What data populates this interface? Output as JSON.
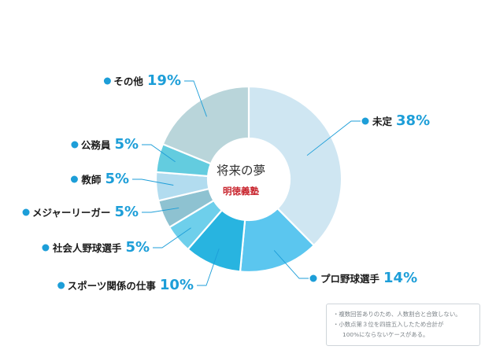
{
  "chart_data": {
    "type": "pie",
    "style": "donut",
    "center_title": "将来の夢",
    "center_subtitle": "明徳義塾",
    "slices": [
      {
        "label": "未定",
        "value": 38,
        "value_text": "38%",
        "color": "#cfe6f2"
      },
      {
        "label": "プロ野球選手",
        "value": 14,
        "value_text": "14%",
        "color": "#5bc6ef"
      },
      {
        "label": "スポーツ関係の仕事",
        "value": 10,
        "value_text": "10%",
        "color": "#28b4e0"
      },
      {
        "label": "社会人野球選手",
        "value": 5,
        "value_text": "5%",
        "color": "#6ecfeb"
      },
      {
        "label": "メジャーリーガー",
        "value": 5,
        "value_text": "5%",
        "color": "#8ec2d1"
      },
      {
        "label": "教師",
        "value": 5,
        "value_text": "5%",
        "color": "#b2dcef"
      },
      {
        "label": "公務員",
        "value": 5,
        "value_text": "5%",
        "color": "#63ccdf"
      },
      {
        "label": "その他",
        "value": 19,
        "value_text": "19%",
        "color": "#b9d5da"
      }
    ]
  },
  "colors": {
    "label_text": "#1a1a1a",
    "percent_text": "#1d9ed8",
    "subtitle_text": "#c8232c",
    "leader_line": "#1d9ed8",
    "dot_fill": "#1d9ed8"
  },
  "notes": [
    "・複数回答ありのため、人数割合と合致しない。",
    "・小数点第３位を四捨五入したため合計が",
    "100%にならないケースがある。"
  ]
}
